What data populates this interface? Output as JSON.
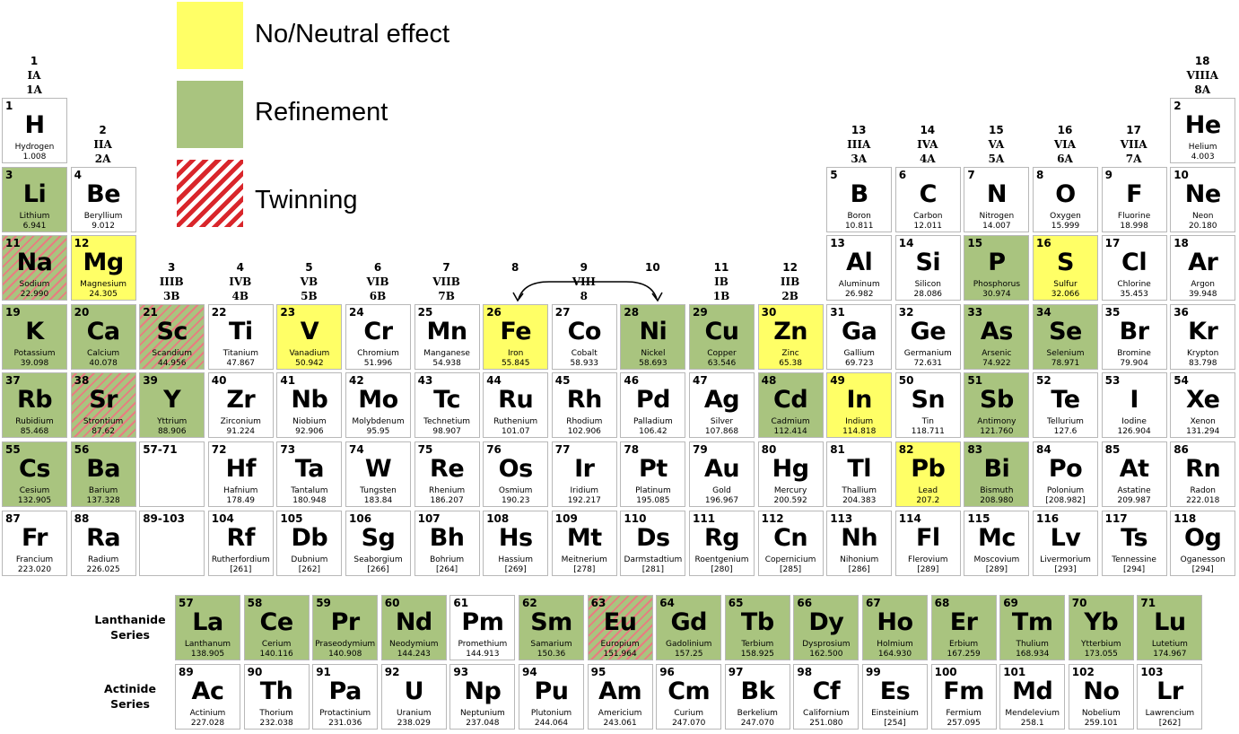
{
  "legend": [
    {
      "label": "No/Neutral effect",
      "color": "#ffff66"
    },
    {
      "label": "Refinement",
      "color": "#a9c47f"
    },
    {
      "label": "Twinning",
      "color": "#d9262b",
      "pattern": "hatch"
    }
  ],
  "groups": [
    {
      "number": 1,
      "roman": "IA",
      "cas": "1A"
    },
    {
      "number": 2,
      "roman": "IIA",
      "cas": "2A"
    },
    {
      "number": 3,
      "roman": "IIIB",
      "cas": "3B"
    },
    {
      "number": 4,
      "roman": "IVB",
      "cas": "4B"
    },
    {
      "number": 5,
      "roman": "VB",
      "cas": "5B"
    },
    {
      "number": 6,
      "roman": "VIB",
      "cas": "6B"
    },
    {
      "number": 7,
      "roman": "VIIB",
      "cas": "7B"
    },
    {
      "number": 8
    },
    {
      "number": 9,
      "roman": "VIII",
      "cas": "8"
    },
    {
      "number": 10
    },
    {
      "number": 11,
      "roman": "IB",
      "cas": "1B"
    },
    {
      "number": 12,
      "roman": "IIB",
      "cas": "2B"
    },
    {
      "number": 13,
      "roman": "IIIA",
      "cas": "3A"
    },
    {
      "number": 14,
      "roman": "IVA",
      "cas": "4A"
    },
    {
      "number": 15,
      "roman": "VA",
      "cas": "5A"
    },
    {
      "number": 16,
      "roman": "VIA",
      "cas": "6A"
    },
    {
      "number": 17,
      "roman": "VIIA",
      "cas": "7A"
    },
    {
      "number": 18,
      "roman": "VIIIA",
      "cas": "8A"
    }
  ],
  "placeholders": [
    "57-71",
    "89-103"
  ],
  "series_labels": [
    "Lanthanide Series",
    "Actinide Series"
  ],
  "elements": [
    {
      "number": 1,
      "symbol": "H",
      "name": "Hydrogen",
      "mass": "1.008"
    },
    {
      "number": 2,
      "symbol": "He",
      "name": "Helium",
      "mass": "4.003"
    },
    {
      "number": 3,
      "symbol": "Li",
      "name": "Lithium",
      "mass": "6.941",
      "effect": "Refinement"
    },
    {
      "number": 4,
      "symbol": "Be",
      "name": "Beryllium",
      "mass": "9.012"
    },
    {
      "number": 5,
      "symbol": "B",
      "name": "Boron",
      "mass": "10.811"
    },
    {
      "number": 6,
      "symbol": "C",
      "name": "Carbon",
      "mass": "12.011"
    },
    {
      "number": 7,
      "symbol": "N",
      "name": "Nitrogen",
      "mass": "14.007"
    },
    {
      "number": 8,
      "symbol": "O",
      "name": "Oxygen",
      "mass": "15.999"
    },
    {
      "number": 9,
      "symbol": "F",
      "name": "Fluorine",
      "mass": "18.998"
    },
    {
      "number": 10,
      "symbol": "Ne",
      "name": "Neon",
      "mass": "20.180"
    },
    {
      "number": 11,
      "symbol": "Na",
      "name": "Sodium",
      "mass": "22.990",
      "effect": "Twinning"
    },
    {
      "number": 12,
      "symbol": "Mg",
      "name": "Magnesium",
      "mass": "24.305",
      "effect": "No/Neutral effect"
    },
    {
      "number": 13,
      "symbol": "Al",
      "name": "Aluminum",
      "mass": "26.982"
    },
    {
      "number": 14,
      "symbol": "Si",
      "name": "Silicon",
      "mass": "28.086"
    },
    {
      "number": 15,
      "symbol": "P",
      "name": "Phosphorus",
      "mass": "30.974",
      "effect": "Refinement"
    },
    {
      "number": 16,
      "symbol": "S",
      "name": "Sulfur",
      "mass": "32.066",
      "effect": "No/Neutral effect"
    },
    {
      "number": 17,
      "symbol": "Cl",
      "name": "Chlorine",
      "mass": "35.453"
    },
    {
      "number": 18,
      "symbol": "Ar",
      "name": "Argon",
      "mass": "39.948"
    },
    {
      "number": 19,
      "symbol": "K",
      "name": "Potassium",
      "mass": "39.098",
      "effect": "Refinement"
    },
    {
      "number": 20,
      "symbol": "Ca",
      "name": "Calcium",
      "mass": "40.078",
      "effect": "Refinement"
    },
    {
      "number": 21,
      "symbol": "Sc",
      "name": "Scandium",
      "mass": "44.956",
      "effect": "Twinning"
    },
    {
      "number": 22,
      "symbol": "Ti",
      "name": "Titanium",
      "mass": "47.867"
    },
    {
      "number": 23,
      "symbol": "V",
      "name": "Vanadium",
      "mass": "50.942",
      "effect": "No/Neutral effect"
    },
    {
      "number": 24,
      "symbol": "Cr",
      "name": "Chromium",
      "mass": "51.996"
    },
    {
      "number": 25,
      "symbol": "Mn",
      "name": "Manganese",
      "mass": "54.938"
    },
    {
      "number": 26,
      "symbol": "Fe",
      "name": "Iron",
      "mass": "55.845",
      "effect": "No/Neutral effect"
    },
    {
      "number": 27,
      "symbol": "Co",
      "name": "Cobalt",
      "mass": "58.933"
    },
    {
      "number": 28,
      "symbol": "Ni",
      "name": "Nickel",
      "mass": "58.693",
      "effect": "Refinement"
    },
    {
      "number": 29,
      "symbol": "Cu",
      "name": "Copper",
      "mass": "63.546",
      "effect": "Refinement"
    },
    {
      "number": 30,
      "symbol": "Zn",
      "name": "Zinc",
      "mass": "65.38",
      "effect": "No/Neutral effect"
    },
    {
      "number": 31,
      "symbol": "Ga",
      "name": "Gallium",
      "mass": "69.723"
    },
    {
      "number": 32,
      "symbol": "Ge",
      "name": "Germanium",
      "mass": "72.631"
    },
    {
      "number": 33,
      "symbol": "As",
      "name": "Arsenic",
      "mass": "74.922",
      "effect": "Refinement"
    },
    {
      "number": 34,
      "symbol": "Se",
      "name": "Selenium",
      "mass": "78.971",
      "effect": "Refinement"
    },
    {
      "number": 35,
      "symbol": "Br",
      "name": "Bromine",
      "mass": "79.904"
    },
    {
      "number": 36,
      "symbol": "Kr",
      "name": "Krypton",
      "mass": "83.798"
    },
    {
      "number": 37,
      "symbol": "Rb",
      "name": "Rubidium",
      "mass": "85.468",
      "effect": "Refinement"
    },
    {
      "number": 38,
      "symbol": "Sr",
      "name": "Strontium",
      "mass": "87.62",
      "effect": "Twinning"
    },
    {
      "number": 39,
      "symbol": "Y",
      "name": "Yttrium",
      "mass": "88.906",
      "effect": "Refinement"
    },
    {
      "number": 40,
      "symbol": "Zr",
      "name": "Zirconium",
      "mass": "91.224"
    },
    {
      "number": 41,
      "symbol": "Nb",
      "name": "Niobium",
      "mass": "92.906"
    },
    {
      "number": 42,
      "symbol": "Mo",
      "name": "Molybdenum",
      "mass": "95.95"
    },
    {
      "number": 43,
      "symbol": "Tc",
      "name": "Technetium",
      "mass": "98.907"
    },
    {
      "number": 44,
      "symbol": "Ru",
      "name": "Ruthenium",
      "mass": "101.07"
    },
    {
      "number": 45,
      "symbol": "Rh",
      "name": "Rhodium",
      "mass": "102.906"
    },
    {
      "number": 46,
      "symbol": "Pd",
      "name": "Palladium",
      "mass": "106.42"
    },
    {
      "number": 47,
      "symbol": "Ag",
      "name": "Silver",
      "mass": "107.868"
    },
    {
      "number": 48,
      "symbol": "Cd",
      "name": "Cadmium",
      "mass": "112.414",
      "effect": "Refinement"
    },
    {
      "number": 49,
      "symbol": "In",
      "name": "Indium",
      "mass": "114.818",
      "effect": "No/Neutral effect"
    },
    {
      "number": 50,
      "symbol": "Sn",
      "name": "Tin",
      "mass": "118.711"
    },
    {
      "number": 51,
      "symbol": "Sb",
      "name": "Antimony",
      "mass": "121.760",
      "effect": "Refinement"
    },
    {
      "number": 52,
      "symbol": "Te",
      "name": "Tellurium",
      "mass": "127.6"
    },
    {
      "number": 53,
      "symbol": "I",
      "name": "Iodine",
      "mass": "126.904"
    },
    {
      "number": 54,
      "symbol": "Xe",
      "name": "Xenon",
      "mass": "131.294"
    },
    {
      "number": 55,
      "symbol": "Cs",
      "name": "Cesium",
      "mass": "132.905",
      "effect": "Refinement"
    },
    {
      "number": 56,
      "symbol": "Ba",
      "name": "Barium",
      "mass": "137.328",
      "effect": "Refinement"
    },
    {
      "number": 57,
      "symbol": "La",
      "name": "Lanthanum",
      "mass": "138.905",
      "effect": "Refinement"
    },
    {
      "number": 58,
      "symbol": "Ce",
      "name": "Cerium",
      "mass": "140.116",
      "effect": "Refinement"
    },
    {
      "number": 59,
      "symbol": "Pr",
      "name": "Praseodymium",
      "mass": "140.908",
      "effect": "Refinement"
    },
    {
      "number": 60,
      "symbol": "Nd",
      "name": "Neodymium",
      "mass": "144.243",
      "effect": "Refinement"
    },
    {
      "number": 61,
      "symbol": "Pm",
      "name": "Promethium",
      "mass": "144.913"
    },
    {
      "number": 62,
      "symbol": "Sm",
      "name": "Samarium",
      "mass": "150.36",
      "effect": "Refinement"
    },
    {
      "number": 63,
      "symbol": "Eu",
      "name": "Europium",
      "mass": "151.964",
      "effect": "Twinning"
    },
    {
      "number": 64,
      "symbol": "Gd",
      "name": "Gadolinium",
      "mass": "157.25",
      "effect": "Refinement"
    },
    {
      "number": 65,
      "symbol": "Tb",
      "name": "Terbium",
      "mass": "158.925",
      "effect": "Refinement"
    },
    {
      "number": 66,
      "symbol": "Dy",
      "name": "Dysprosium",
      "mass": "162.500",
      "effect": "Refinement"
    },
    {
      "number": 67,
      "symbol": "Ho",
      "name": "Holmium",
      "mass": "164.930",
      "effect": "Refinement"
    },
    {
      "number": 68,
      "symbol": "Er",
      "name": "Erbium",
      "mass": "167.259",
      "effect": "Refinement"
    },
    {
      "number": 69,
      "symbol": "Tm",
      "name": "Thulium",
      "mass": "168.934",
      "effect": "Refinement"
    },
    {
      "number": 70,
      "symbol": "Yb",
      "name": "Ytterbium",
      "mass": "173.055",
      "effect": "Refinement"
    },
    {
      "number": 71,
      "symbol": "Lu",
      "name": "Lutetium",
      "mass": "174.967",
      "effect": "Refinement"
    },
    {
      "number": 72,
      "symbol": "Hf",
      "name": "Hafnium",
      "mass": "178.49"
    },
    {
      "number": 73,
      "symbol": "Ta",
      "name": "Tantalum",
      "mass": "180.948"
    },
    {
      "number": 74,
      "symbol": "W",
      "name": "Tungsten",
      "mass": "183.84"
    },
    {
      "number": 75,
      "symbol": "Re",
      "name": "Rhenium",
      "mass": "186.207"
    },
    {
      "number": 76,
      "symbol": "Os",
      "name": "Osmium",
      "mass": "190.23"
    },
    {
      "number": 77,
      "symbol": "Ir",
      "name": "Iridium",
      "mass": "192.217"
    },
    {
      "number": 78,
      "symbol": "Pt",
      "name": "Platinum",
      "mass": "195.085"
    },
    {
      "number": 79,
      "symbol": "Au",
      "name": "Gold",
      "mass": "196.967"
    },
    {
      "number": 80,
      "symbol": "Hg",
      "name": "Mercury",
      "mass": "200.592"
    },
    {
      "number": 81,
      "symbol": "Tl",
      "name": "Thallium",
      "mass": "204.383"
    },
    {
      "number": 82,
      "symbol": "Pb",
      "name": "Lead",
      "mass": "207.2",
      "effect": "No/Neutral effect"
    },
    {
      "number": 83,
      "symbol": "Bi",
      "name": "Bismuth",
      "mass": "208.980",
      "effect": "Refinement"
    },
    {
      "number": 84,
      "symbol": "Po",
      "name": "Polonium",
      "mass": "[208.982]"
    },
    {
      "number": 85,
      "symbol": "At",
      "name": "Astatine",
      "mass": "209.987"
    },
    {
      "number": 86,
      "symbol": "Rn",
      "name": "Radon",
      "mass": "222.018"
    },
    {
      "number": 87,
      "symbol": "Fr",
      "name": "Francium",
      "mass": "223.020"
    },
    {
      "number": 88,
      "symbol": "Ra",
      "name": "Radium",
      "mass": "226.025"
    },
    {
      "number": 89,
      "symbol": "Ac",
      "name": "Actinium",
      "mass": "227.028"
    },
    {
      "number": 90,
      "symbol": "Th",
      "name": "Thorium",
      "mass": "232.038"
    },
    {
      "number": 91,
      "symbol": "Pa",
      "name": "Protactinium",
      "mass": "231.036"
    },
    {
      "number": 92,
      "symbol": "U",
      "name": "Uranium",
      "mass": "238.029"
    },
    {
      "number": 93,
      "symbol": "Np",
      "name": "Neptunium",
      "mass": "237.048"
    },
    {
      "number": 94,
      "symbol": "Pu",
      "name": "Plutonium",
      "mass": "244.064"
    },
    {
      "number": 95,
      "symbol": "Am",
      "name": "Americium",
      "mass": "243.061"
    },
    {
      "number": 96,
      "symbol": "Cm",
      "name": "Curium",
      "mass": "247.070"
    },
    {
      "number": 97,
      "symbol": "Bk",
      "name": "Berkelium",
      "mass": "247.070"
    },
    {
      "number": 98,
      "symbol": "Cf",
      "name": "Californium",
      "mass": "251.080"
    },
    {
      "number": 99,
      "symbol": "Es",
      "name": "Einsteinium",
      "mass": "[254]"
    },
    {
      "number": 100,
      "symbol": "Fm",
      "name": "Fermium",
      "mass": "257.095"
    },
    {
      "number": 101,
      "symbol": "Md",
      "name": "Mendelevium",
      "mass": "258.1"
    },
    {
      "number": 102,
      "symbol": "No",
      "name": "Nobelium",
      "mass": "259.101"
    },
    {
      "number": 103,
      "symbol": "Lr",
      "name": "Lawrencium",
      "mass": "[262]"
    },
    {
      "number": 104,
      "symbol": "Rf",
      "name": "Rutherfordium",
      "mass": "[261]"
    },
    {
      "number": 105,
      "symbol": "Db",
      "name": "Dubnium",
      "mass": "[262]"
    },
    {
      "number": 106,
      "symbol": "Sg",
      "name": "Seaborgium",
      "mass": "[266]"
    },
    {
      "number": 107,
      "symbol": "Bh",
      "name": "Bohrium",
      "mass": "[264]"
    },
    {
      "number": 108,
      "symbol": "Hs",
      "name": "Hassium",
      "mass": "[269]"
    },
    {
      "number": 109,
      "symbol": "Mt",
      "name": "Meitnerium",
      "mass": "[278]"
    },
    {
      "number": 110,
      "symbol": "Ds",
      "name": "Darmstadtium",
      "mass": "[281]"
    },
    {
      "number": 111,
      "symbol": "Rg",
      "name": "Roentgenium",
      "mass": "[280]"
    },
    {
      "number": 112,
      "symbol": "Cn",
      "name": "Copernicium",
      "mass": "[285]"
    },
    {
      "number": 113,
      "symbol": "Nh",
      "name": "Nihonium",
      "mass": "[286]"
    },
    {
      "number": 114,
      "symbol": "Fl",
      "name": "Flerovium",
      "mass": "[289]"
    },
    {
      "number": 115,
      "symbol": "Mc",
      "name": "Moscovium",
      "mass": "[289]"
    },
    {
      "number": 116,
      "symbol": "Lv",
      "name": "Livermorium",
      "mass": "[293]"
    },
    {
      "number": 117,
      "symbol": "Ts",
      "name": "Tennessine",
      "mass": "[294]"
    },
    {
      "number": 118,
      "symbol": "Og",
      "name": "Oganesson",
      "mass": "[294]"
    }
  ]
}
